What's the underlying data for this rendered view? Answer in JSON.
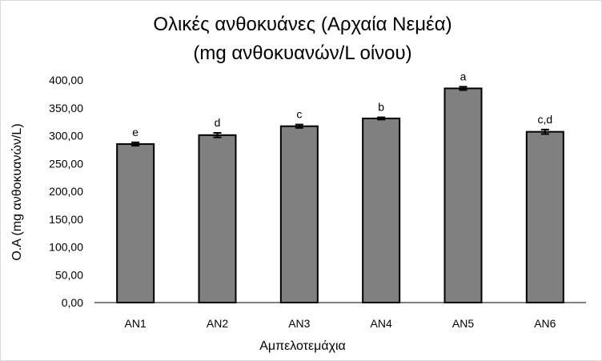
{
  "chart_data": {
    "type": "bar",
    "title_line1": "Ολικές ανθοκυάνες (Αρχαία Νεμέα)",
    "title_line2": "(mg ανθοκυανών/L οίνου)",
    "xlabel": "Αμπελοτεμάχια",
    "ylabel": "Ο.Α (mg ανθοκυανών/L)",
    "categories": [
      "AN1",
      "AN2",
      "AN3",
      "AN4",
      "AN5",
      "AN6"
    ],
    "values": [
      285,
      301,
      317,
      331,
      385,
      307
    ],
    "errors": [
      3,
      4,
      3,
      2,
      3,
      4
    ],
    "significance": [
      "e",
      "d",
      "c",
      "b",
      "a",
      "c,d"
    ],
    "ylim": [
      0,
      400
    ],
    "yticks": [
      "0,00",
      "50,00",
      "100,00",
      "150,00",
      "200,00",
      "250,00",
      "300,00",
      "350,00",
      "400,00"
    ],
    "bar_color": "#808080",
    "bar_edge_color": "#000000",
    "grid": false
  }
}
